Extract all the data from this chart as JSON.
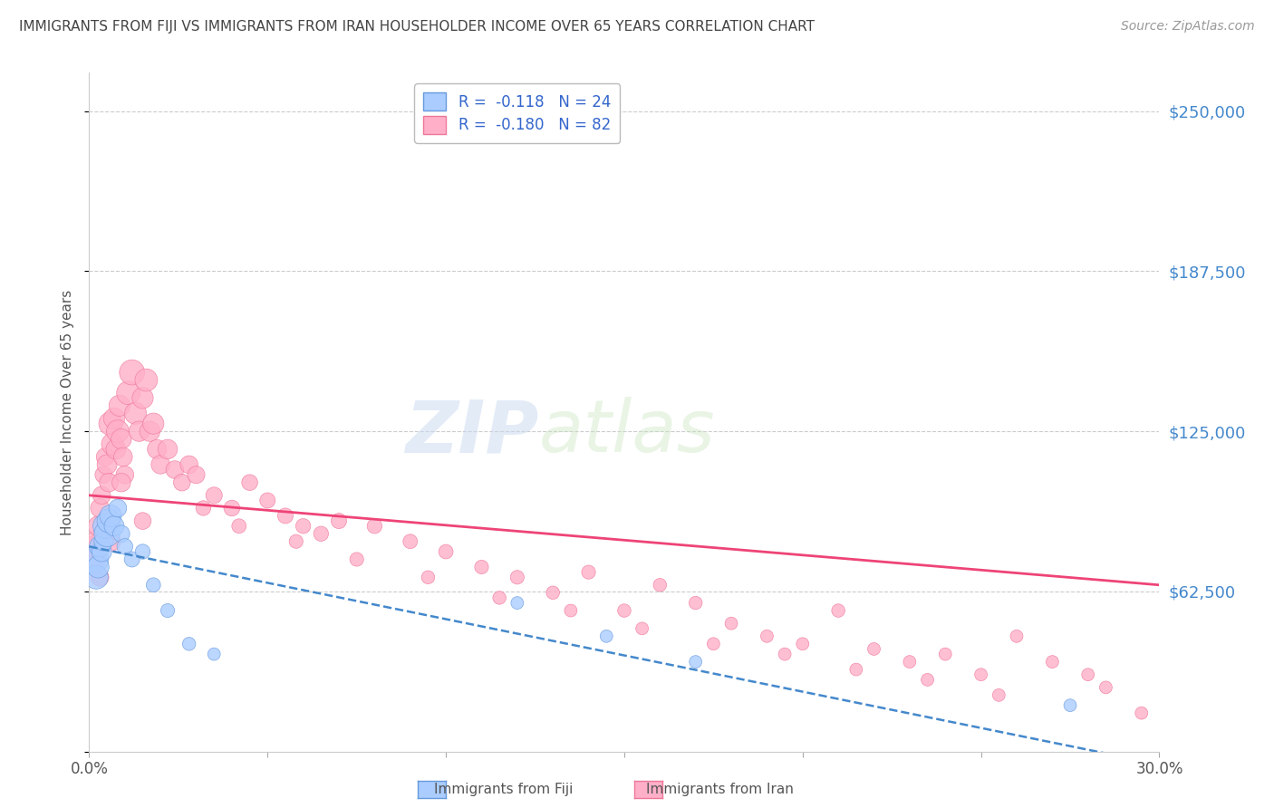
{
  "title": "IMMIGRANTS FROM FIJI VS IMMIGRANTS FROM IRAN HOUSEHOLDER INCOME OVER 65 YEARS CORRELATION CHART",
  "source": "Source: ZipAtlas.com",
  "ylabel": "Householder Income Over 65 years",
  "y_ticks": [
    0,
    62500,
    125000,
    187500,
    250000
  ],
  "y_tick_labels": [
    "",
    "$62,500",
    "$125,000",
    "$187,500",
    "$250,000"
  ],
  "x_lim": [
    0,
    30
  ],
  "y_lim": [
    0,
    265000
  ],
  "fiji_color": "#aaccff",
  "fiji_edge_color": "#6699dd",
  "iran_color": "#ffb0c8",
  "iran_edge_color": "#ee7799",
  "fiji_line_color": "#4488cc",
  "iran_line_color": "#ee4477",
  "watermark_zip": "ZIP",
  "watermark_atlas": "atlas",
  "background_color": "#ffffff",
  "grid_color": "#cccccc",
  "title_color": "#444444",
  "axis_label_color": "#555555",
  "tick_label_color_right": "#4488cc",
  "legend_fiji_label": "R =  -0.118   N = 24",
  "legend_iran_label": "R =  -0.180   N = 82",
  "fiji_scatter_x": [
    0.15,
    0.2,
    0.25,
    0.3,
    0.35,
    0.4,
    0.45,
    0.5,
    0.55,
    0.6,
    0.7,
    0.8,
    0.9,
    1.0,
    1.2,
    1.5,
    1.8,
    2.2,
    2.8,
    3.5,
    12.0,
    14.5,
    17.0,
    27.5
  ],
  "fiji_scatter_y": [
    75000,
    68000,
    72000,
    80000,
    78000,
    82000,
    88000,
    85000,
    90000,
    92000,
    88000,
    95000,
    85000,
    80000,
    75000,
    78000,
    65000,
    55000,
    42000,
    38000,
    58000,
    45000,
    35000,
    18000
  ],
  "fiji_scatter_size": [
    500,
    350,
    300,
    280,
    250,
    220,
    380,
    420,
    350,
    300,
    250,
    200,
    180,
    160,
    150,
    140,
    130,
    120,
    110,
    100,
    100,
    100,
    100,
    100
  ],
  "iran_scatter_x": [
    0.1,
    0.15,
    0.2,
    0.25,
    0.3,
    0.35,
    0.4,
    0.45,
    0.5,
    0.55,
    0.6,
    0.65,
    0.7,
    0.75,
    0.8,
    0.85,
    0.9,
    0.95,
    1.0,
    1.1,
    1.2,
    1.3,
    1.4,
    1.5,
    1.6,
    1.7,
    1.8,
    1.9,
    2.0,
    2.2,
    2.4,
    2.6,
    2.8,
    3.0,
    3.5,
    4.0,
    4.5,
    5.0,
    5.5,
    6.0,
    6.5,
    7.0,
    8.0,
    9.0,
    10.0,
    11.0,
    12.0,
    13.0,
    14.0,
    15.0,
    16.0,
    17.0,
    18.0,
    19.0,
    20.0,
    21.0,
    22.0,
    23.0,
    24.0,
    25.0,
    26.0,
    27.0,
    28.0,
    28.5,
    29.5,
    3.2,
    4.2,
    5.8,
    7.5,
    9.5,
    11.5,
    13.5,
    15.5,
    17.5,
    19.5,
    21.5,
    23.5,
    25.5,
    0.3,
    0.6,
    0.9,
    1.5
  ],
  "iran_scatter_y": [
    75000,
    80000,
    82000,
    88000,
    95000,
    100000,
    108000,
    115000,
    112000,
    105000,
    128000,
    120000,
    130000,
    118000,
    125000,
    135000,
    122000,
    115000,
    108000,
    140000,
    148000,
    132000,
    125000,
    138000,
    145000,
    125000,
    128000,
    118000,
    112000,
    118000,
    110000,
    105000,
    112000,
    108000,
    100000,
    95000,
    105000,
    98000,
    92000,
    88000,
    85000,
    90000,
    88000,
    82000,
    78000,
    72000,
    68000,
    62000,
    70000,
    55000,
    65000,
    58000,
    50000,
    45000,
    42000,
    55000,
    40000,
    35000,
    38000,
    30000,
    45000,
    35000,
    30000,
    25000,
    15000,
    95000,
    88000,
    82000,
    75000,
    68000,
    60000,
    55000,
    48000,
    42000,
    38000,
    32000,
    28000,
    22000,
    68000,
    82000,
    105000,
    90000
  ],
  "iran_scatter_size": [
    400,
    300,
    280,
    250,
    220,
    200,
    180,
    200,
    250,
    220,
    350,
    300,
    280,
    250,
    320,
    280,
    260,
    220,
    200,
    350,
    400,
    300,
    260,
    280,
    320,
    260,
    280,
    230,
    220,
    240,
    200,
    180,
    200,
    190,
    170,
    160,
    160,
    150,
    150,
    140,
    140,
    150,
    140,
    130,
    130,
    120,
    120,
    110,
    120,
    110,
    110,
    110,
    100,
    100,
    100,
    110,
    100,
    100,
    100,
    100,
    100,
    100,
    100,
    100,
    100,
    140,
    130,
    120,
    120,
    110,
    110,
    100,
    100,
    100,
    100,
    100,
    100,
    100,
    200,
    250,
    220,
    180
  ]
}
